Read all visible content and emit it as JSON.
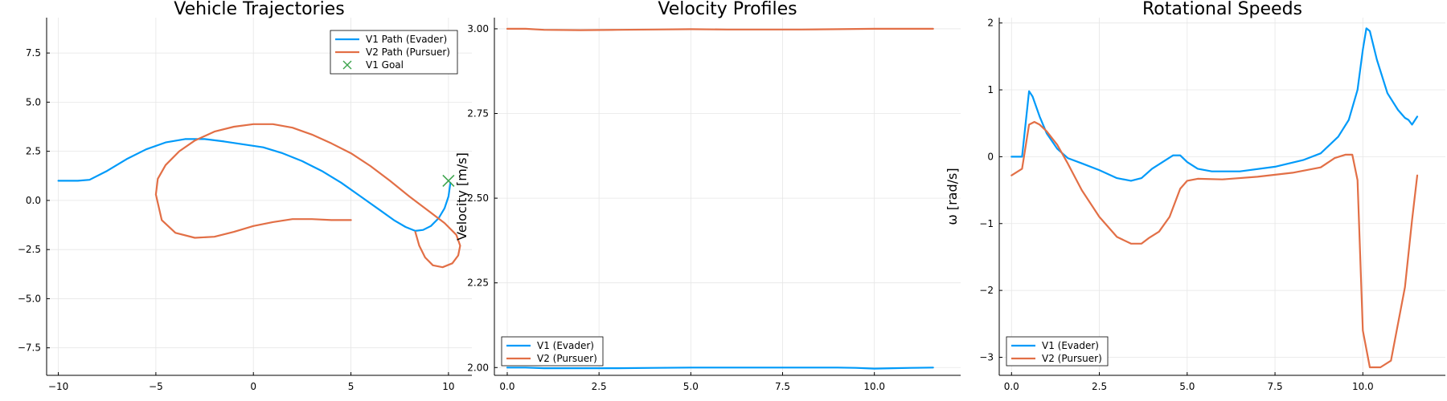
{
  "chart_data": [
    {
      "type": "line",
      "title": "Vehicle Trajectories",
      "xlabel": "",
      "ylabel": "",
      "xlim": [
        -10.6,
        11.2
      ],
      "ylim": [
        -8.9,
        9.3
      ],
      "xticks": [
        -10,
        -5,
        0,
        5,
        10
      ],
      "xtick_labels": [
        "−10",
        "−5",
        "0",
        "5",
        "10"
      ],
      "yticks": [
        -7.5,
        -5.0,
        -2.5,
        0.0,
        2.5,
        5.0,
        7.5
      ],
      "ytick_labels": [
        "−7.5",
        "−5.0",
        "−2.5",
        "0.0",
        "2.5",
        "5.0",
        "7.5"
      ],
      "grid": true,
      "legend_position": "top-right",
      "series": [
        {
          "name": "V1 Path (Evader)",
          "color": "#009af9",
          "x": [
            -10,
            -9,
            -8.4,
            -7.5,
            -6.5,
            -5.5,
            -4.5,
            -3.5,
            -2.5,
            -1.5,
            -0.5,
            0.5,
            1.5,
            2.5,
            3.5,
            4.5,
            5.5,
            6.5,
            7.2,
            7.8,
            8.3,
            8.7,
            9.1,
            9.5,
            9.8,
            10.0,
            10.1
          ],
          "y": [
            1.0,
            1.0,
            1.05,
            1.5,
            2.1,
            2.6,
            2.95,
            3.12,
            3.12,
            3.0,
            2.85,
            2.7,
            2.4,
            2.0,
            1.5,
            0.9,
            0.2,
            -0.5,
            -1.0,
            -1.35,
            -1.55,
            -1.5,
            -1.3,
            -0.9,
            -0.4,
            0.2,
            0.9
          ]
        },
        {
          "name": "V2 Path (Pursuer)",
          "color": "#e26f46",
          "x": [
            5,
            4,
            3,
            2,
            1,
            0,
            -1,
            -2,
            -3,
            -4,
            -4.7,
            -5,
            -4.9,
            -4.5,
            -3.8,
            -3,
            -2,
            -1,
            0,
            1,
            2,
            3,
            4,
            5,
            6,
            7,
            8,
            9,
            9.8,
            10.4,
            10.6,
            10.5,
            10.2,
            9.7,
            9.2,
            8.8,
            8.5,
            8.3
          ],
          "y": [
            -1.0,
            -1.0,
            -0.95,
            -0.95,
            -1.1,
            -1.3,
            -1.6,
            -1.85,
            -1.9,
            -1.65,
            -1.0,
            0.3,
            1.1,
            1.8,
            2.5,
            3.05,
            3.5,
            3.75,
            3.88,
            3.88,
            3.7,
            3.35,
            2.9,
            2.4,
            1.75,
            1.0,
            0.2,
            -0.55,
            -1.15,
            -1.75,
            -2.3,
            -2.8,
            -3.2,
            -3.4,
            -3.3,
            -2.9,
            -2.3,
            -1.6
          ]
        },
        {
          "name": "V1 Goal",
          "color": "#3da44d",
          "marker": "x",
          "x": [
            10.0
          ],
          "y": [
            1.0
          ]
        }
      ]
    },
    {
      "type": "line",
      "title": "Velocity Profiles",
      "xlabel": "",
      "ylabel": "Velocity [m/s]",
      "xlim": [
        -0.35,
        12.35
      ],
      "ylim": [
        1.977,
        3.033
      ],
      "xticks": [
        0,
        2.5,
        5,
        7.5,
        10
      ],
      "xtick_labels": [
        "0.0",
        "2.5",
        "5.0",
        "7.5",
        "10.0"
      ],
      "yticks": [
        2.0,
        2.25,
        2.5,
        2.75,
        3.0
      ],
      "ytick_labels": [
        "2.00",
        "2.25",
        "2.50",
        "2.75",
        "3.00"
      ],
      "grid": true,
      "legend_position": "bottom-left",
      "series": [
        {
          "name": "V1 (Evader)",
          "color": "#009af9",
          "x": [
            0,
            0.5,
            1,
            2,
            3,
            4,
            5,
            6,
            7,
            8,
            9,
            9.5,
            10,
            10.5,
            11,
            11.6
          ],
          "y": [
            2.0,
            2.0,
            1.998,
            1.998,
            1.998,
            1.999,
            2.0,
            2.0,
            2.0,
            2.0,
            2.0,
            1.999,
            1.997,
            1.998,
            1.999,
            2.0
          ]
        },
        {
          "name": "V2 (Pursuer)",
          "color": "#e26f46",
          "x": [
            0,
            0.5,
            1,
            2,
            3,
            4,
            5,
            6,
            7,
            8,
            9,
            10,
            11,
            11.6
          ],
          "y": [
            3.0,
            3.0,
            2.997,
            2.996,
            2.997,
            2.998,
            2.999,
            2.998,
            2.998,
            2.998,
            2.999,
            3.0,
            3.0,
            3.0
          ]
        }
      ]
    },
    {
      "type": "line",
      "title": "Rotational Speeds",
      "xlabel": "",
      "ylabel": "ω [rad/s]",
      "xlim": [
        -0.35,
        12.35
      ],
      "ylim": [
        -3.27,
        2.08
      ],
      "xticks": [
        0,
        2.5,
        5,
        7.5,
        10
      ],
      "xtick_labels": [
        "0.0",
        "2.5",
        "5.0",
        "7.5",
        "10.0"
      ],
      "yticks": [
        -3,
        -2,
        -1,
        0,
        1,
        2
      ],
      "ytick_labels": [
        "−3",
        "−2",
        "−1",
        "0",
        "1",
        "2"
      ],
      "grid": true,
      "legend_position": "bottom-left",
      "series": [
        {
          "name": "V1 (Evader)",
          "color": "#009af9",
          "x": [
            0,
            0.3,
            0.5,
            0.6,
            0.8,
            1.0,
            1.3,
            1.6,
            2.0,
            2.5,
            3.0,
            3.4,
            3.7,
            4.0,
            4.3,
            4.6,
            4.8,
            5.0,
            5.3,
            5.7,
            6.5,
            7.5,
            8.3,
            8.8,
            9.3,
            9.6,
            9.85,
            10.0,
            10.1,
            10.2,
            10.4,
            10.7,
            11.0,
            11.2,
            11.3,
            11.4,
            11.55
          ],
          "y": [
            0.0,
            0.0,
            0.98,
            0.9,
            0.6,
            0.35,
            0.12,
            -0.02,
            -0.1,
            -0.2,
            -0.32,
            -0.36,
            -0.32,
            -0.18,
            -0.08,
            0.02,
            0.02,
            -0.08,
            -0.18,
            -0.22,
            -0.22,
            -0.15,
            -0.05,
            0.05,
            0.3,
            0.55,
            1.0,
            1.6,
            1.92,
            1.88,
            1.45,
            0.95,
            0.7,
            0.58,
            0.55,
            0.48,
            0.6
          ]
        },
        {
          "name": "V2 (Pursuer)",
          "color": "#e26f46",
          "x": [
            0,
            0.3,
            0.5,
            0.65,
            0.8,
            1.0,
            1.3,
            1.6,
            2.0,
            2.5,
            3.0,
            3.4,
            3.7,
            3.9,
            4.2,
            4.5,
            4.8,
            5.0,
            5.3,
            6.0,
            7.0,
            8.0,
            8.8,
            9.2,
            9.5,
            9.7,
            9.85,
            10.0,
            10.2,
            10.5,
            10.8,
            11.2,
            11.4,
            11.55
          ],
          "y": [
            -0.28,
            -0.18,
            0.48,
            0.52,
            0.48,
            0.38,
            0.18,
            -0.1,
            -0.5,
            -0.9,
            -1.2,
            -1.3,
            -1.3,
            -1.22,
            -1.12,
            -0.9,
            -0.48,
            -0.36,
            -0.33,
            -0.34,
            -0.3,
            -0.24,
            -0.16,
            -0.02,
            0.03,
            0.03,
            -0.35,
            -2.6,
            -3.15,
            -3.15,
            -3.05,
            -1.95,
            -0.95,
            -0.28
          ]
        }
      ]
    }
  ]
}
